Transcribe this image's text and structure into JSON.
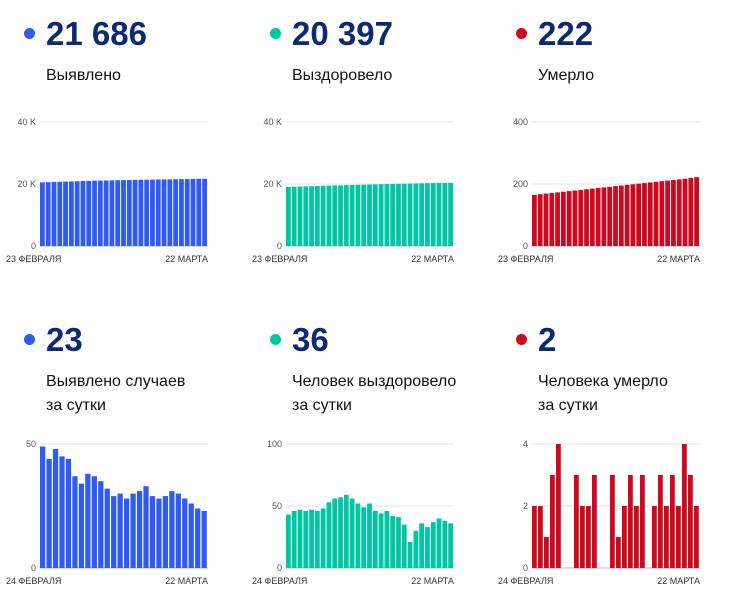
{
  "colors": {
    "blue": "#2f5bf2",
    "teal": "#00c7a3",
    "red": "#cc0a1f",
    "number": "#0c2a73"
  },
  "panels": [
    {
      "number": "21 686",
      "label1": "Выявлено",
      "label2": "",
      "color": "#2f5bf2"
    },
    {
      "number": "20 397",
      "label1": "Выздоровело",
      "label2": "",
      "color": "#00c7a3"
    },
    {
      "number": "222",
      "label1": "Умерло",
      "label2": "",
      "color": "#cc0a1f"
    },
    {
      "number": "23",
      "label1": "Выявлено случаев",
      "label2": "за сутки",
      "color": "#2f5bf2"
    },
    {
      "number": "36",
      "label1": "Человек выздоровело",
      "label2": "за сутки",
      "color": "#00c7a3"
    },
    {
      "number": "2",
      "label1": "Человека умерло",
      "label2": "за сутки",
      "color": "#cc0a1f"
    }
  ],
  "chart_data": [
    {
      "type": "bar",
      "x_start": "23 ФЕВРАЛЯ",
      "x_end": "22 МАРТА",
      "ylim": [
        0,
        40000
      ],
      "ytick_labels": [
        "0",
        "20 K",
        "40 K"
      ],
      "color": "#2f5bf2",
      "values": [
        20540,
        20600,
        20660,
        20720,
        20780,
        20840,
        20900,
        20960,
        21000,
        21050,
        21100,
        21140,
        21180,
        21220,
        21260,
        21300,
        21330,
        21360,
        21390,
        21420,
        21450,
        21480,
        21510,
        21540,
        21570,
        21600,
        21640,
        21663,
        21686
      ]
    },
    {
      "type": "bar",
      "x_start": "23 ФЕВРАЛЯ",
      "x_end": "22 МАРТА",
      "ylim": [
        0,
        40000
      ],
      "ytick_labels": [
        "0",
        "20 K",
        "40 K"
      ],
      "color": "#00c7a3",
      "values": [
        19060,
        19120,
        19180,
        19240,
        19300,
        19360,
        19420,
        19480,
        19530,
        19580,
        19630,
        19680,
        19730,
        19780,
        19830,
        19880,
        19930,
        19980,
        20030,
        20070,
        20110,
        20150,
        20190,
        20230,
        20270,
        20300,
        20330,
        20361,
        20397
      ]
    },
    {
      "type": "bar",
      "x_start": "23 ФЕВРАЛЯ",
      "x_end": "22 МАРТА",
      "ylim": [
        0,
        400
      ],
      "ytick_labels": [
        "0",
        "200",
        "400"
      ],
      "color": "#cc0a1f",
      "values": [
        165,
        167,
        169,
        171,
        173,
        175,
        177,
        179,
        181,
        183,
        185,
        187,
        189,
        191,
        193,
        195,
        197,
        199,
        201,
        203,
        205,
        207,
        209,
        211,
        213,
        215,
        217,
        220,
        222
      ]
    },
    {
      "type": "bar",
      "x_start": "24 ФЕВРАЛЯ",
      "x_end": "22 МАРТА",
      "ylim": [
        0,
        50
      ],
      "ytick_labels": [
        "0",
        "50"
      ],
      "color": "#2f5bf2",
      "values": [
        49,
        44,
        48,
        45,
        44,
        37,
        34,
        38,
        37,
        35,
        32,
        29,
        30,
        28,
        30,
        31,
        33,
        29,
        28,
        29,
        31,
        30,
        28,
        26,
        24,
        23
      ]
    },
    {
      "type": "bar",
      "x_start": "24 ФЕВРАЛЯ",
      "x_end": "22 МАРТА",
      "ylim": [
        0,
        100
      ],
      "ytick_labels": [
        "0",
        "50",
        "100"
      ],
      "color": "#00c7a3",
      "values": [
        43,
        46,
        47,
        46,
        47,
        46,
        48,
        53,
        56,
        57,
        59,
        56,
        52,
        49,
        52,
        46,
        44,
        46,
        42,
        41,
        35,
        21,
        30,
        36,
        33,
        37,
        40,
        38,
        36
      ]
    },
    {
      "type": "bar",
      "x_start": "24 ФЕВРАЛЯ",
      "x_end": "22 МАРТА",
      "ylim": [
        0,
        4
      ],
      "ytick_labels": [
        "0",
        "2",
        "4"
      ],
      "color": "#cc0a1f",
      "values": [
        2,
        2,
        1,
        3,
        4,
        0,
        0,
        3,
        2,
        2,
        3,
        0,
        0,
        3,
        1,
        2,
        3,
        2,
        3,
        0,
        2,
        3,
        2,
        3,
        2,
        4,
        3,
        2
      ]
    }
  ]
}
